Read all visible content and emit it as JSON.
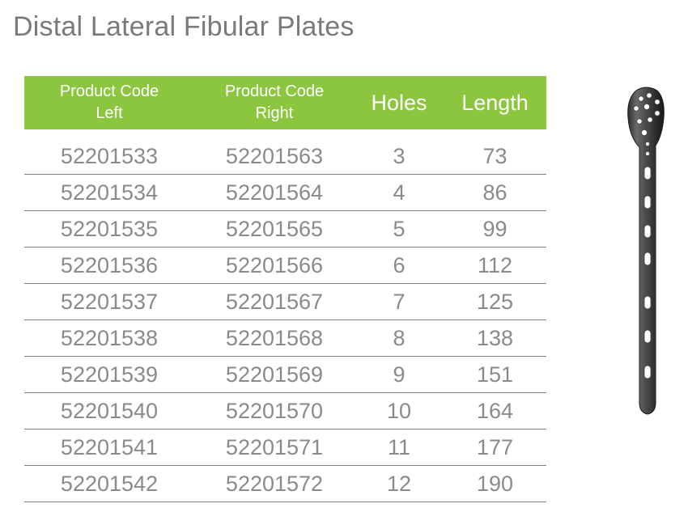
{
  "title": "Distal Lateral Fibular Plates",
  "headers": {
    "left": [
      "Product Code",
      "Left"
    ],
    "right": [
      "Product Code",
      "Right"
    ],
    "holes": "Holes",
    "length": "Length"
  },
  "rows": [
    {
      "left": "52201533",
      "right": "52201563",
      "holes": "3",
      "length": "73"
    },
    {
      "left": "52201534",
      "right": "52201564",
      "holes": "4",
      "length": "86"
    },
    {
      "left": "52201535",
      "right": "52201565",
      "holes": "5",
      "length": "99"
    },
    {
      "left": "52201536",
      "right": "52201566",
      "holes": "6",
      "length": "112"
    },
    {
      "left": "52201537",
      "right": "52201567",
      "holes": "7",
      "length": "125"
    },
    {
      "left": "52201538",
      "right": "52201568",
      "holes": "8",
      "length": "138"
    },
    {
      "left": "52201539",
      "right": "52201569",
      "holes": "9",
      "length": "151"
    },
    {
      "left": "52201540",
      "right": "52201570",
      "holes": "10",
      "length": "164"
    },
    {
      "left": "52201541",
      "right": "52201571",
      "holes": "11",
      "length": "177"
    },
    {
      "left": "52201542",
      "right": "52201572",
      "holes": "12",
      "length": "190"
    }
  ],
  "colors": {
    "header_bg": "#8cc63f",
    "header_text": "#ffffff",
    "body_text": "#8a8a8a",
    "title_text": "#7a7a7a"
  },
  "image": "distal-lateral-fibular-plate-icon"
}
